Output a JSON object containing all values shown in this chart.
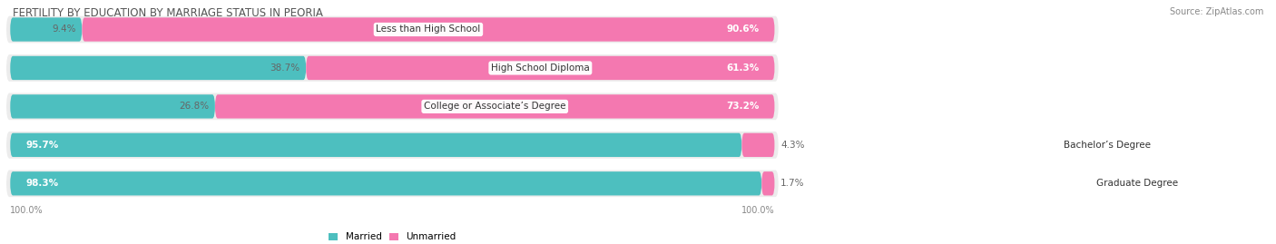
{
  "title": "FERTILITY BY EDUCATION BY MARRIAGE STATUS IN PEORIA",
  "source": "Source: ZipAtlas.com",
  "categories": [
    "Less than High School",
    "High School Diploma",
    "College or Associate’s Degree",
    "Bachelor’s Degree",
    "Graduate Degree"
  ],
  "married": [
    9.4,
    38.7,
    26.8,
    95.7,
    98.3
  ],
  "unmarried": [
    90.6,
    61.3,
    73.2,
    4.3,
    1.7
  ],
  "married_color": "#4DBFBF",
  "unmarried_color": "#F478B0",
  "bar_height": 0.62,
  "title_fontsize": 8.5,
  "label_fontsize": 7.5,
  "cat_fontsize": 7.5,
  "footer_fontsize": 7,
  "axis_label": "100.0%",
  "bg_color": "#ececec"
}
